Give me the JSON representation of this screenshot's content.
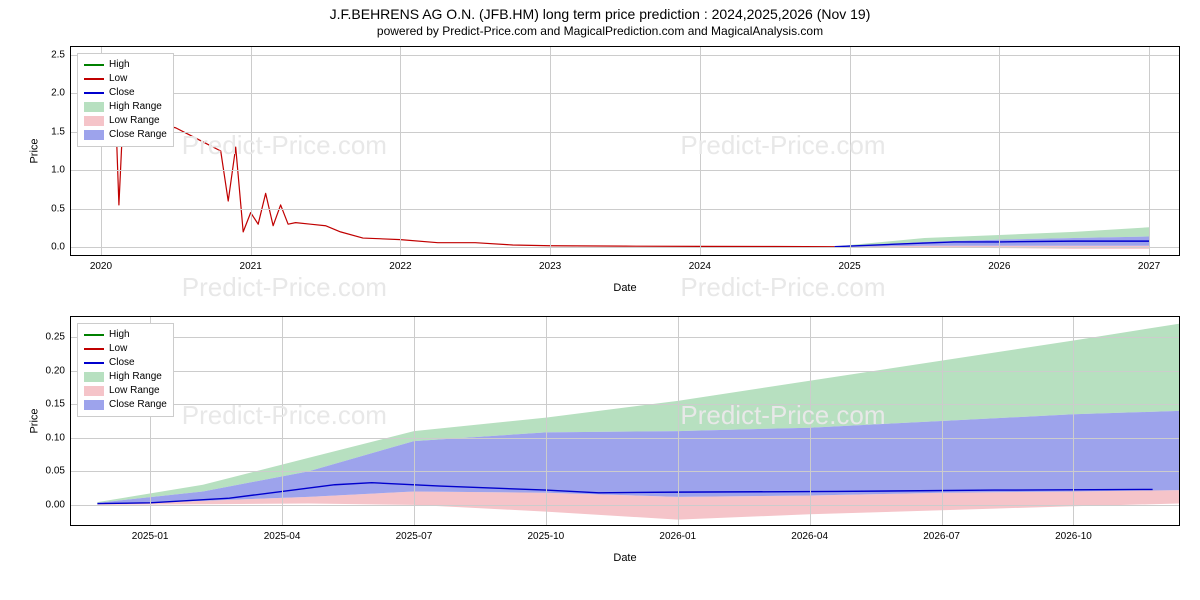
{
  "title": "J.F.BEHRENS AG O.N. (JFB.HM) long term price prediction : 2024,2025,2026 (Nov 19)",
  "subtitle": "powered by Predict-Price.com and MagicalPrediction.com and MagicalAnalysis.com",
  "watermark_text": "Predict-Price.com",
  "colors": {
    "high_line": "#008000",
    "low_line": "#c00000",
    "close_line": "#0000cd",
    "high_range_fill": "#b7e0c0",
    "low_range_fill": "#f5c4c9",
    "close_range_fill": "#9da3ec",
    "grid": "#cccccc",
    "border": "#000000",
    "background": "#ffffff",
    "watermark": "#e8e8e8"
  },
  "legend_items": [
    {
      "type": "line",
      "label": "High",
      "color": "#008000"
    },
    {
      "type": "line",
      "label": "Low",
      "color": "#c00000"
    },
    {
      "type": "line",
      "label": "Close",
      "color": "#0000cd"
    },
    {
      "type": "patch",
      "label": "High Range",
      "color": "#b7e0c0"
    },
    {
      "type": "patch",
      "label": "Low Range",
      "color": "#f5c4c9"
    },
    {
      "type": "patch",
      "label": "Close Range",
      "color": "#9da3ec"
    }
  ],
  "chart1": {
    "type": "line+area",
    "ylabel": "Price",
    "xlabel": "Date",
    "ylim": [
      -0.1,
      2.6
    ],
    "yticks": [
      0.0,
      0.5,
      1.0,
      1.5,
      2.0,
      2.5
    ],
    "xlim_years": [
      2019.8,
      2027.2
    ],
    "xticks": [
      "2020",
      "2021",
      "2022",
      "2023",
      "2024",
      "2025",
      "2026",
      "2027"
    ],
    "xtick_years": [
      2020,
      2021,
      2022,
      2023,
      2024,
      2025,
      2026,
      2027
    ],
    "price_series_t": [
      2020.0,
      2020.05,
      2020.1,
      2020.12,
      2020.15,
      2020.18,
      2020.2,
      2020.22,
      2020.25,
      2020.3,
      2020.4,
      2020.5,
      2020.6,
      2020.7,
      2020.8,
      2020.85,
      2020.9,
      2020.95,
      2021.0,
      2021.05,
      2021.1,
      2021.15,
      2021.2,
      2021.25,
      2021.3,
      2021.4,
      2021.5,
      2021.6,
      2021.75,
      2022.0,
      2022.25,
      2022.5,
      2022.75,
      2023.0,
      2023.5,
      2024.0,
      2024.5,
      2024.9
    ],
    "price_series_v": [
      1.6,
      1.55,
      1.65,
      0.55,
      1.8,
      2.1,
      1.9,
      1.8,
      1.7,
      1.65,
      1.6,
      1.55,
      1.45,
      1.35,
      1.25,
      0.6,
      1.3,
      0.2,
      0.45,
      0.3,
      0.7,
      0.28,
      0.55,
      0.3,
      0.32,
      0.3,
      0.28,
      0.2,
      0.12,
      0.1,
      0.06,
      0.06,
      0.03,
      0.02,
      0.015,
      0.012,
      0.01,
      0.008
    ],
    "pred_close_t": [
      2024.9,
      2025.3,
      2025.7,
      2026.0,
      2026.5,
      2027.0
    ],
    "pred_close_v": [
      0.008,
      0.04,
      0.07,
      0.07,
      0.08,
      0.08
    ],
    "high_range_t": [
      2024.9,
      2025.5,
      2026.0,
      2026.5,
      2027.0
    ],
    "high_range_top": [
      0.01,
      0.12,
      0.16,
      0.2,
      0.26
    ],
    "high_range_bot": [
      0.005,
      0.07,
      0.1,
      0.12,
      0.14
    ],
    "close_range_t": [
      2024.9,
      2025.5,
      2026.0,
      2026.5,
      2027.0
    ],
    "close_range_top": [
      0.005,
      0.07,
      0.1,
      0.12,
      0.14
    ],
    "close_range_bot": [
      0.002,
      0.02,
      0.02,
      0.02,
      0.02
    ],
    "low_range_t": [
      2024.9,
      2025.5,
      2026.0,
      2026.5,
      2027.0
    ],
    "low_range_top": [
      0.002,
      0.02,
      0.02,
      0.02,
      0.02
    ],
    "low_range_bot": [
      0.0,
      0.0,
      -0.01,
      -0.02,
      -0.02
    ]
  },
  "chart2": {
    "type": "line+area",
    "ylabel": "Price",
    "xlabel": "Date",
    "ylim": [
      -0.03,
      0.28
    ],
    "yticks": [
      0.0,
      0.05,
      0.1,
      0.15,
      0.2,
      0.25
    ],
    "xlim_years": [
      2024.85,
      2026.95
    ],
    "xticks": [
      "2025-01",
      "2025-04",
      "2025-07",
      "2025-10",
      "2026-01",
      "2026-04",
      "2026-07",
      "2026-10"
    ],
    "xtick_years": [
      2025.0,
      2025.25,
      2025.5,
      2025.75,
      2026.0,
      2026.25,
      2026.5,
      2026.75
    ],
    "close_line_t": [
      2024.9,
      2025.0,
      2025.15,
      2025.35,
      2025.42,
      2025.55,
      2025.75,
      2025.85,
      2026.0,
      2026.3,
      2026.6,
      2026.9
    ],
    "close_line_v": [
      0.002,
      0.003,
      0.01,
      0.03,
      0.033,
      0.028,
      0.022,
      0.018,
      0.019,
      0.02,
      0.022,
      0.023
    ],
    "high_range_t": [
      2024.9,
      2025.1,
      2025.3,
      2025.5,
      2025.75,
      2026.0,
      2026.25,
      2026.5,
      2026.75,
      2026.95
    ],
    "high_range_top": [
      0.004,
      0.03,
      0.07,
      0.11,
      0.13,
      0.155,
      0.185,
      0.215,
      0.245,
      0.27
    ],
    "high_range_bot": [
      0.003,
      0.02,
      0.05,
      0.095,
      0.108,
      0.11,
      0.115,
      0.125,
      0.135,
      0.14
    ],
    "close_range_t": [
      2024.9,
      2025.1,
      2025.3,
      2025.5,
      2025.75,
      2026.0,
      2026.25,
      2026.5,
      2026.75,
      2026.95
    ],
    "close_range_top": [
      0.003,
      0.02,
      0.05,
      0.095,
      0.108,
      0.11,
      0.115,
      0.125,
      0.135,
      0.14
    ],
    "close_range_bot": [
      0.001,
      0.006,
      0.012,
      0.02,
      0.018,
      0.012,
      0.014,
      0.018,
      0.02,
      0.022
    ],
    "low_range_t": [
      2024.9,
      2025.1,
      2025.3,
      2025.5,
      2025.75,
      2026.0,
      2026.25,
      2026.5,
      2026.75,
      2026.95
    ],
    "low_range_top": [
      0.001,
      0.006,
      0.012,
      0.02,
      0.018,
      0.012,
      0.014,
      0.018,
      0.02,
      0.022
    ],
    "low_range_bot": [
      0.0,
      0.001,
      0.002,
      0.0,
      -0.01,
      -0.022,
      -0.014,
      -0.008,
      -0.002,
      0.002
    ]
  },
  "fontsize_title": 14,
  "fontsize_subtitle": 12,
  "fontsize_tick": 10,
  "fontsize_label": 11,
  "fontsize_legend": 10
}
